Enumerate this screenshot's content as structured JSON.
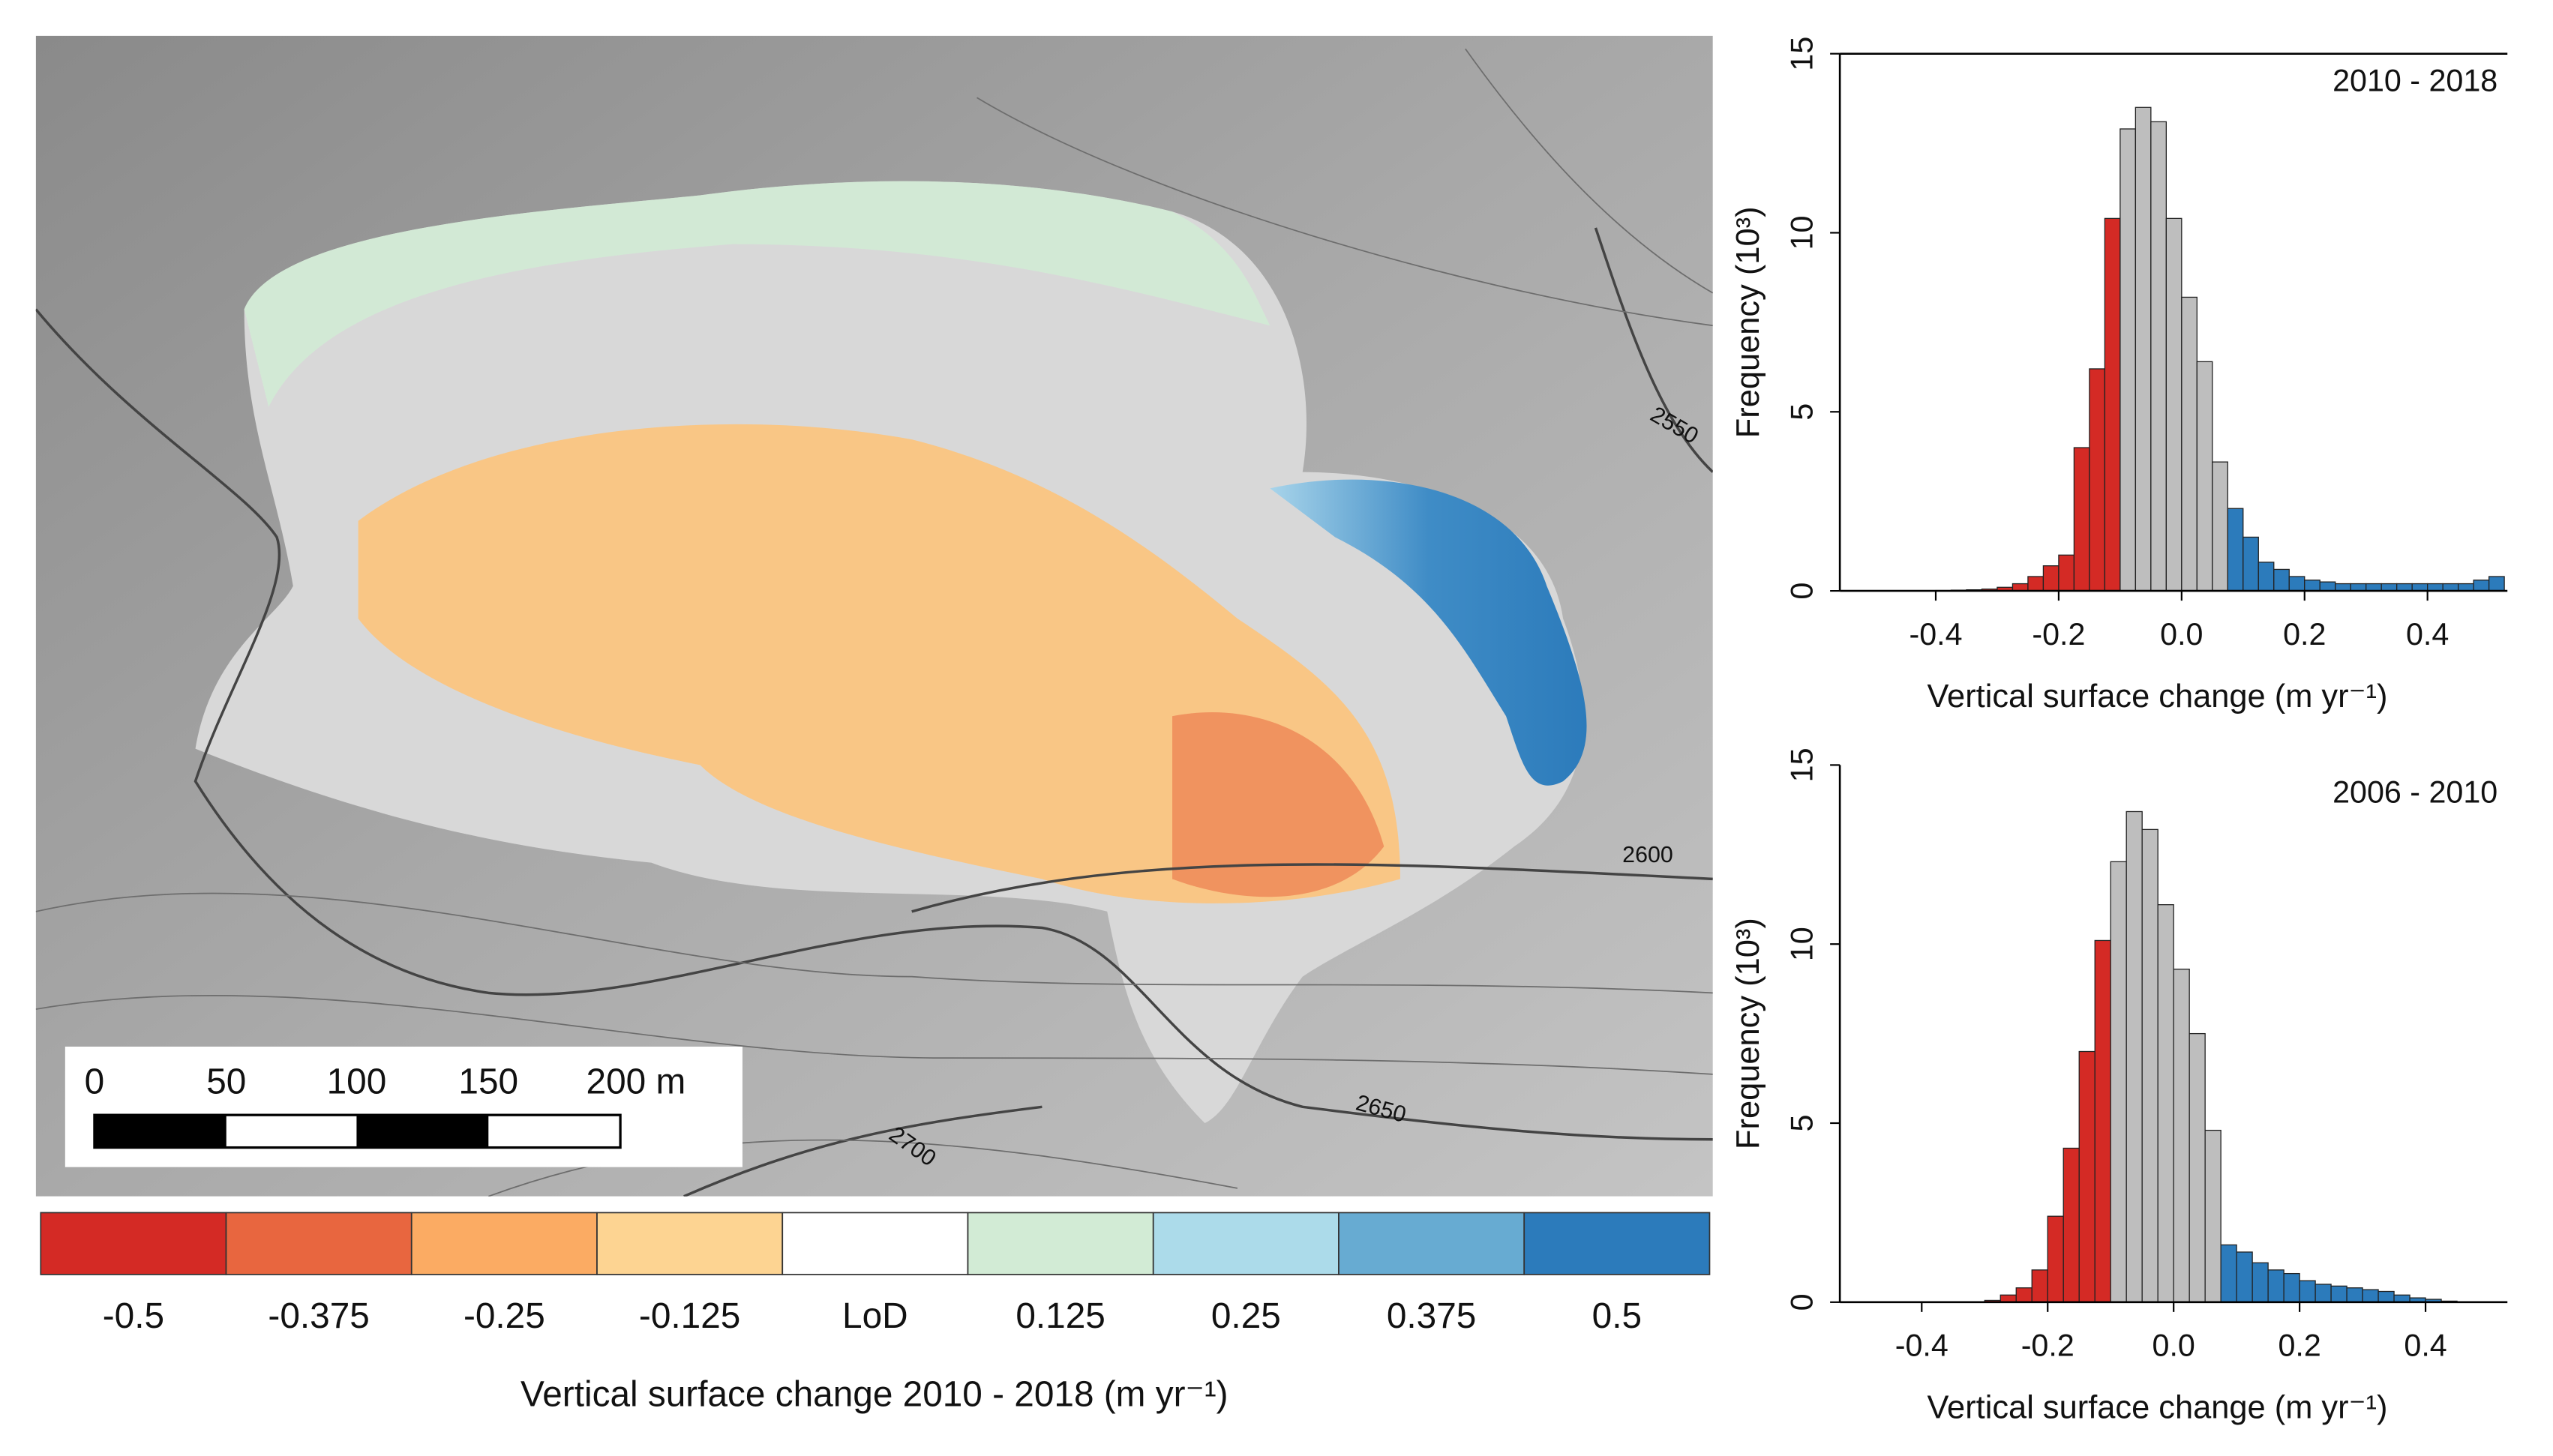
{
  "map": {
    "contour_labels": [
      "2550",
      "2600",
      "2650",
      "2700"
    ],
    "scale_bar_labels": [
      "0",
      "50",
      "100",
      "150",
      "200 m"
    ]
  },
  "colorbar": {
    "title": "Vertical surface change 2010 - 2018 (m yr⁻¹)",
    "labels": [
      "-0.5",
      "-0.375",
      "-0.25",
      "-0.125",
      "LoD",
      "0.125",
      "0.25",
      "0.375",
      "0.5"
    ],
    "colors": [
      "#d42a25",
      "#e8663f",
      "#fbab63",
      "#fdd492",
      "#ffffff",
      "#d2ebd5",
      "#acdbea",
      "#67abd2",
      "#2c7bbb"
    ]
  },
  "chart_data": [
    {
      "type": "histogram",
      "annotation": "2010 - 2018",
      "x_label": "Vertical surface change (m yr⁻¹)",
      "y_label": "Frequency (10³)",
      "frame": true,
      "xlim": [
        -0.556,
        0.53
      ],
      "ylim": [
        0,
        15
      ],
      "xticks": [
        -0.4,
        -0.2,
        {
          "value": 0,
          "label": "0.0"
        },
        0.2,
        0.4
      ],
      "yticks": [
        0,
        5,
        10,
        15
      ],
      "series": [
        {
          "color": "#d42a25",
          "bins": [
            -0.4,
            -0.375,
            -0.35,
            -0.325,
            -0.3,
            -0.275,
            -0.25,
            -0.225,
            -0.2,
            -0.175,
            -0.15,
            -0.125,
            -0.1
          ],
          "values": [
            0.01,
            0.02,
            0.03,
            0.05,
            0.1,
            0.2,
            0.4,
            0.7,
            1.0,
            4.0,
            6.2,
            10.4
          ]
        },
        {
          "color": "#bebebe",
          "bins": [
            -0.1,
            -0.075,
            -0.05,
            -0.025,
            0,
            0.025,
            0.05,
            0.075
          ],
          "values": [
            12.9,
            13.5,
            13.1,
            10.4,
            8.2,
            6.4,
            3.6
          ]
        },
        {
          "color": "#2c7bbb",
          "bins": [
            0.075,
            0.1,
            0.125,
            0.15,
            0.175,
            0.2,
            0.225,
            0.25,
            0.275,
            0.3,
            0.325,
            0.35,
            0.375,
            0.4,
            0.425,
            0.45,
            0.475,
            0.5,
            0.525
          ],
          "values": [
            2.3,
            1.5,
            0.8,
            0.6,
            0.4,
            0.3,
            0.25,
            0.2,
            0.2,
            0.2,
            0.2,
            0.2,
            0.2,
            0.2,
            0.2,
            0.2,
            0.3,
            0.4
          ]
        }
      ]
    },
    {
      "type": "histogram",
      "annotation": "2006 - 2010",
      "x_label": "Vertical surface change (m yr⁻¹)",
      "y_label": "Frequency (10³)",
      "frame": false,
      "xlim": [
        -0.53,
        0.53
      ],
      "ylim": [
        0,
        15
      ],
      "xticks": [
        -0.4,
        -0.2,
        {
          "value": 0,
          "label": "0.0"
        },
        0.2,
        0.4
      ],
      "yticks": [
        0,
        5,
        10,
        15
      ],
      "series": [
        {
          "color": "#d42a25",
          "bins": [
            -0.3,
            -0.275,
            -0.25,
            -0.225,
            -0.2,
            -0.175,
            -0.15,
            -0.125,
            -0.1
          ],
          "values": [
            0.05,
            0.2,
            0.4,
            0.9,
            2.4,
            4.3,
            7.0,
            10.1
          ]
        },
        {
          "color": "#bebebe",
          "bins": [
            -0.1,
            -0.075,
            -0.05,
            -0.025,
            0,
            0.025,
            0.05,
            0.075
          ],
          "values": [
            12.3,
            13.7,
            13.2,
            11.1,
            9.3,
            7.5,
            4.8
          ]
        },
        {
          "color": "#2c7bbb",
          "bins": [
            0.075,
            0.1,
            0.125,
            0.15,
            0.175,
            0.2,
            0.225,
            0.25,
            0.275,
            0.3,
            0.325,
            0.35,
            0.375,
            0.4,
            0.425,
            0.45
          ],
          "values": [
            1.6,
            1.4,
            1.1,
            0.9,
            0.8,
            0.6,
            0.5,
            0.45,
            0.4,
            0.35,
            0.3,
            0.2,
            0.12,
            0.08,
            0.03
          ]
        }
      ]
    }
  ]
}
